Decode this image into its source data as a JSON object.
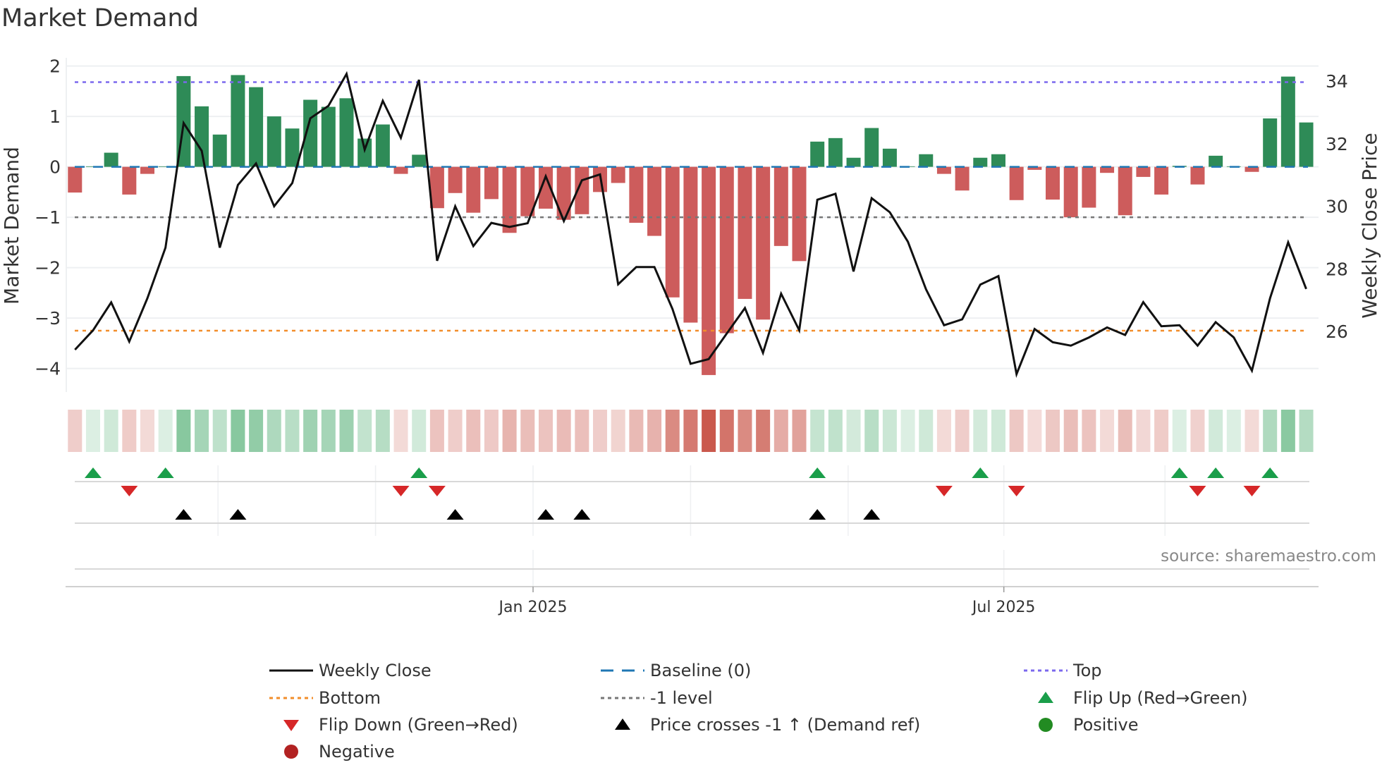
{
  "chart_data": {
    "type": "bar",
    "title": "Market Demand",
    "ylabel": "Market Demand",
    "y2label": "Weekly Close Price",
    "ylim": [
      -4.3,
      2.2
    ],
    "y_ticks": [
      "2",
      "1",
      "0",
      "−1",
      "−2",
      "−3",
      "−4"
    ],
    "y_tick_values": [
      2,
      1,
      0,
      -1,
      -2,
      -3,
      -4
    ],
    "y2_ticks": [
      "34",
      "32",
      "30",
      "28",
      "26"
    ],
    "y2_tick_values": [
      34,
      32,
      30,
      28,
      26
    ],
    "x_ticks": [
      {
        "label": "Jan 2025",
        "at_week": 25.3
      },
      {
        "label": "Jul 2025",
        "at_week": 51.3
      }
    ],
    "x_minor_weeks": [
      7.9,
      16.6,
      34.0,
      42.7,
      60.2
    ],
    "reference_lines": {
      "top": 1.68,
      "bottom": -3.25,
      "minus_one": -1,
      "baseline": 0
    },
    "colors": {
      "positive": "#2e8b57",
      "negative": "#cd5c5c",
      "price": "#111111",
      "top": "#7b68ee",
      "bottom": "#f28e2b",
      "minus_one": "#777777",
      "baseline": "#1f77b4",
      "flip_up": "#1a9e4a",
      "flip_down": "#d62728",
      "cross": "#000000"
    },
    "demand": [
      -0.51,
      0.01,
      0.28,
      -0.55,
      -0.14,
      0.01,
      1.8,
      1.2,
      0.64,
      1.82,
      1.58,
      1.0,
      0.76,
      1.33,
      1.19,
      1.36,
      0.56,
      0.84,
      -0.14,
      0.24,
      -0.82,
      -0.52,
      -0.91,
      -0.64,
      -1.31,
      -0.98,
      -0.83,
      -1.05,
      -0.94,
      -0.5,
      -0.32,
      -1.11,
      -1.37,
      -2.59,
      -3.09,
      -4.13,
      -3.3,
      -2.62,
      -3.03,
      -1.57,
      -1.87,
      0.5,
      0.57,
      0.18,
      0.77,
      0.36,
      0.01,
      0.25,
      -0.14,
      -0.47,
      0.18,
      0.25,
      -0.66,
      -0.06,
      -0.65,
      -1.0,
      -0.81,
      -0.12,
      -0.96,
      -0.2,
      -0.55,
      0.02,
      -0.35,
      0.22,
      0.01,
      -0.1,
      0.96,
      1.79,
      0.88
    ],
    "weekly_close": [
      25.42,
      26.04,
      26.93,
      25.68,
      27.06,
      28.68,
      32.66,
      31.77,
      28.68,
      30.68,
      31.37,
      30.0,
      30.74,
      32.81,
      33.21,
      34.23,
      31.81,
      33.37,
      32.19,
      34.04,
      28.26,
      30.0,
      28.73,
      29.47,
      29.34,
      29.46,
      30.96,
      29.53,
      30.83,
      31.02,
      27.51,
      28.06,
      28.06,
      26.72,
      24.97,
      25.12,
      25.94,
      26.75,
      25.32,
      27.21,
      26.04,
      30.21,
      30.4,
      27.92,
      30.26,
      29.81,
      28.87,
      27.35,
      26.2,
      26.39,
      27.5,
      27.77,
      24.64,
      26.08,
      25.66,
      25.55,
      25.81,
      26.13,
      25.89,
      26.94,
      26.17,
      26.2,
      25.55,
      26.3,
      25.81,
      24.75,
      27.06,
      28.85,
      27.36
    ],
    "flip_up_weeks": [
      1,
      5,
      19,
      41,
      50,
      61,
      63,
      66
    ],
    "flip_down_weeks": [
      3,
      18,
      20,
      48,
      52,
      62,
      65
    ],
    "price_cross_weeks": [
      6,
      9,
      21,
      26,
      28,
      41,
      44
    ],
    "legend": {
      "weekly_close": "Weekly Close",
      "baseline": "Baseline (0)",
      "top": "Top",
      "bottom": "Bottom",
      "minus_one": "-1 level",
      "flip_up": "Flip Up (Red→Green)",
      "flip_down": "Flip Down (Green→Red)",
      "price_cross": "Price crosses -1 ↑ (Demand ref)",
      "positive": "Positive",
      "negative": "Negative"
    },
    "source": "source: sharemaestro.com"
  }
}
